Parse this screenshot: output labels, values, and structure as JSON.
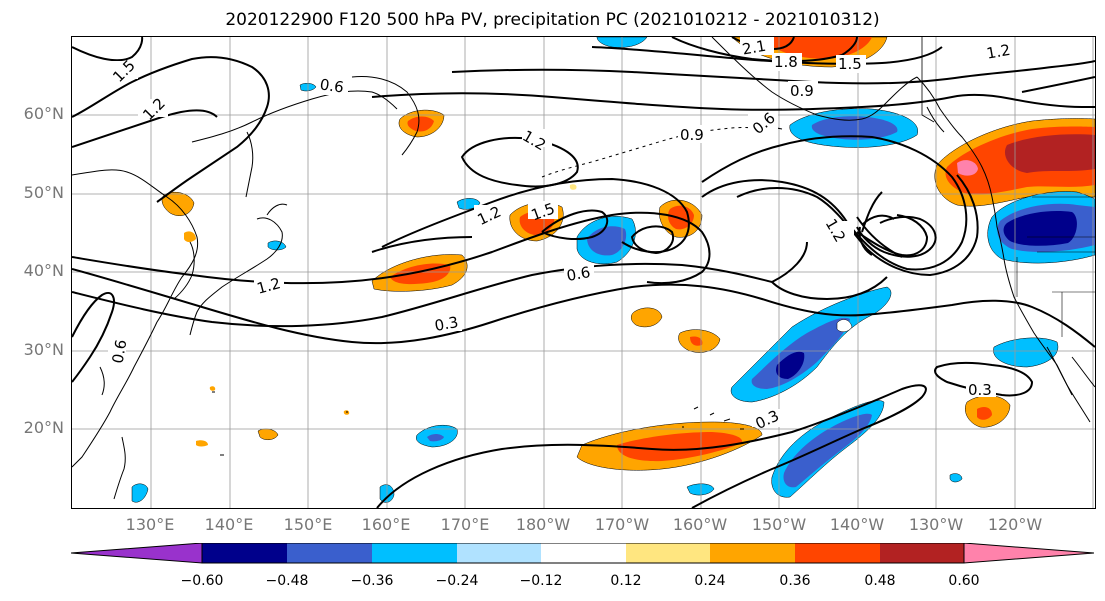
{
  "title": "2020122900 F120 500 hPa PV, precipitation PC (2021010212 - 2021010312)",
  "lat_labels": [
    "60°N",
    "50°N",
    "40°N",
    "30°N",
    "20°N"
  ],
  "lon_labels": [
    "130°E",
    "140°E",
    "150°E",
    "160°E",
    "170°E",
    "180°W",
    "170°W",
    "160°W",
    "150°W",
    "140°W",
    "130°W",
    "120°W"
  ],
  "contour_labels": [
    "1.5",
    "1.2",
    "0.6",
    "2.1",
    "1.8",
    "1.5",
    "1.2",
    "0.9",
    "0.9",
    "1.2",
    "1.5",
    "1.2",
    "1.2",
    "0.6",
    "0.3",
    "0.6",
    "0.3",
    "0.3",
    "0.6",
    "1.2"
  ],
  "colorbar": {
    "ticks": [
      "−0.60",
      "−0.48",
      "−0.36",
      "−0.24",
      "−0.12",
      "0.12",
      "0.24",
      "0.36",
      "0.48",
      "0.60"
    ],
    "colors": [
      "#9932cc",
      "#00008b",
      "#3a5fcd",
      "#00bfff",
      "#b0e2ff",
      "#ffffff",
      "#ffe680",
      "#ffa500",
      "#ff4500",
      "#b22222",
      "#ff82ab"
    ]
  },
  "colors": {
    "strong_positive": "#b22222",
    "positive": "#ff4500",
    "moderate_positive": "#ffa500",
    "weak_positive": "#ffe680",
    "weak_negative": "#b0e2ff",
    "moderate_negative": "#00bfff",
    "negative": "#3a5fcd",
    "strong_negative": "#00008b",
    "extreme_positive": "#ff82ab"
  }
}
